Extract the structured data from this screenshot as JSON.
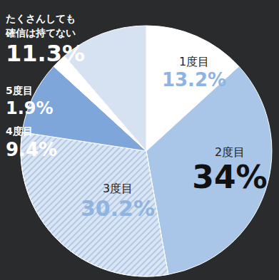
{
  "chart_data": {
    "type": "pie",
    "categories": [
      "1度目",
      "2度目",
      "3度目",
      "4度目",
      "5度目",
      "たくさんしても\n確信は持てない"
    ],
    "values": [
      13.2,
      34,
      30.2,
      9.4,
      1.9,
      11.3
    ],
    "value_labels": [
      "13.2%",
      "34%",
      "30.2%",
      "9.4%",
      "1.9%",
      "11.3%"
    ],
    "colors": [
      "#ffffff",
      "#a9c5e8",
      "#dbe6f4",
      "#7ea6db",
      "#ffffff",
      "#d6e1f1"
    ],
    "data_labels": true
  }
}
